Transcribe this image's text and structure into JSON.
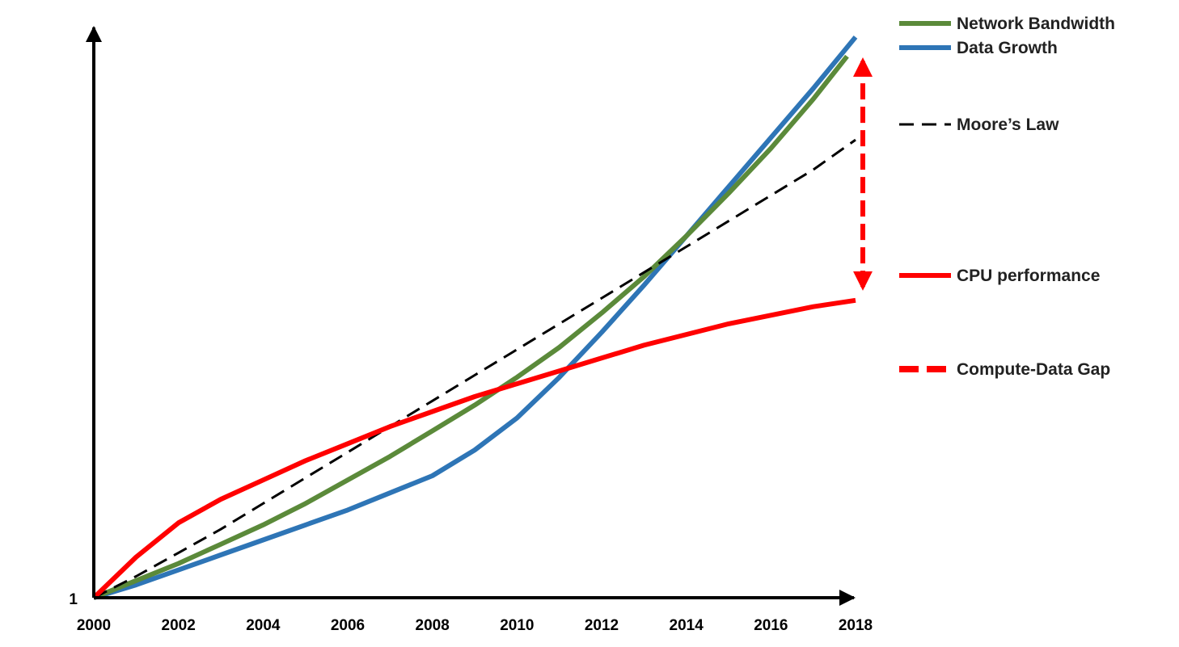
{
  "chart_data": {
    "type": "line",
    "title": "",
    "xlabel": "",
    "ylabel": "",
    "xlim": [
      2000,
      2018
    ],
    "x_ticks": [
      2000,
      2002,
      2004,
      2006,
      2008,
      2010,
      2012,
      2014,
      2016,
      2018
    ],
    "y_tick_label": "1",
    "grid": false,
    "legend_position": "right",
    "series": [
      {
        "name": "Network Bandwidth",
        "color": "#5b8a3a",
        "style": "solid",
        "x": [
          2000,
          2001,
          2002,
          2003,
          2004,
          2005,
          2006,
          2007,
          2008,
          2009,
          2010,
          2011,
          2012,
          2013,
          2014,
          2015,
          2016,
          2017,
          2017.8
        ],
        "y": [
          1,
          1.4,
          1.8,
          2.25,
          2.7,
          3.2,
          3.75,
          4.3,
          4.9,
          5.5,
          6.15,
          6.85,
          7.65,
          8.5,
          9.45,
          10.45,
          11.5,
          12.65,
          13.65
        ]
      },
      {
        "name": "Data Growth",
        "color": "#2e75b6",
        "style": "solid",
        "x": [
          2000,
          2001,
          2002,
          2003,
          2004,
          2005,
          2006,
          2007,
          2008,
          2009,
          2010,
          2011,
          2012,
          2013,
          2014,
          2015,
          2016,
          2017,
          2018
        ],
        "y": [
          1,
          1.3,
          1.65,
          2.0,
          2.35,
          2.7,
          3.05,
          3.45,
          3.85,
          4.45,
          5.2,
          6.15,
          7.2,
          8.3,
          9.45,
          10.6,
          11.75,
          12.9,
          14.1
        ]
      },
      {
        "name": "Moore’s Law",
        "color": "#000000",
        "style": "dashed",
        "x": [
          2000,
          2001,
          2002,
          2003,
          2004,
          2005,
          2006,
          2007,
          2008,
          2009,
          2010,
          2011,
          2012,
          2013,
          2014,
          2015,
          2016,
          2017,
          2018
        ],
        "y": [
          1,
          1.5,
          2.05,
          2.6,
          3.2,
          3.8,
          4.4,
          5.0,
          5.6,
          6.2,
          6.8,
          7.4,
          8.0,
          8.6,
          9.2,
          9.8,
          10.4,
          11.0,
          11.7
        ]
      },
      {
        "name": "CPU performance",
        "color": "#ff0000",
        "style": "solid",
        "x": [
          2000,
          2001,
          2002,
          2003,
          2004,
          2005,
          2006,
          2007,
          2008,
          2009,
          2010,
          2011,
          2012,
          2013,
          2014,
          2015,
          2016,
          2017,
          2018
        ],
        "y": [
          1,
          1.95,
          2.75,
          3.3,
          3.75,
          4.2,
          4.6,
          5.0,
          5.35,
          5.7,
          6.0,
          6.3,
          6.6,
          6.9,
          7.15,
          7.4,
          7.6,
          7.8,
          7.95
        ]
      }
    ],
    "gap_annotation": {
      "name": "Compute-Data Gap",
      "color": "#ff0000",
      "style": "dashed double arrow",
      "x": 2018,
      "y_from": 8.0,
      "y_to": 13.8
    },
    "legend": [
      {
        "label": "Network Bandwidth",
        "color": "#5b8a3a",
        "style": "solid"
      },
      {
        "label": "Data Growth",
        "color": "#2e75b6",
        "style": "solid"
      },
      {
        "label": "Moore’s Law",
        "color": "#000000",
        "style": "dashed"
      },
      {
        "label": "CPU performance",
        "color": "#ff0000",
        "style": "solid"
      },
      {
        "label": "Compute-Data Gap",
        "color": "#ff0000",
        "style": "dashed-thick"
      }
    ]
  }
}
